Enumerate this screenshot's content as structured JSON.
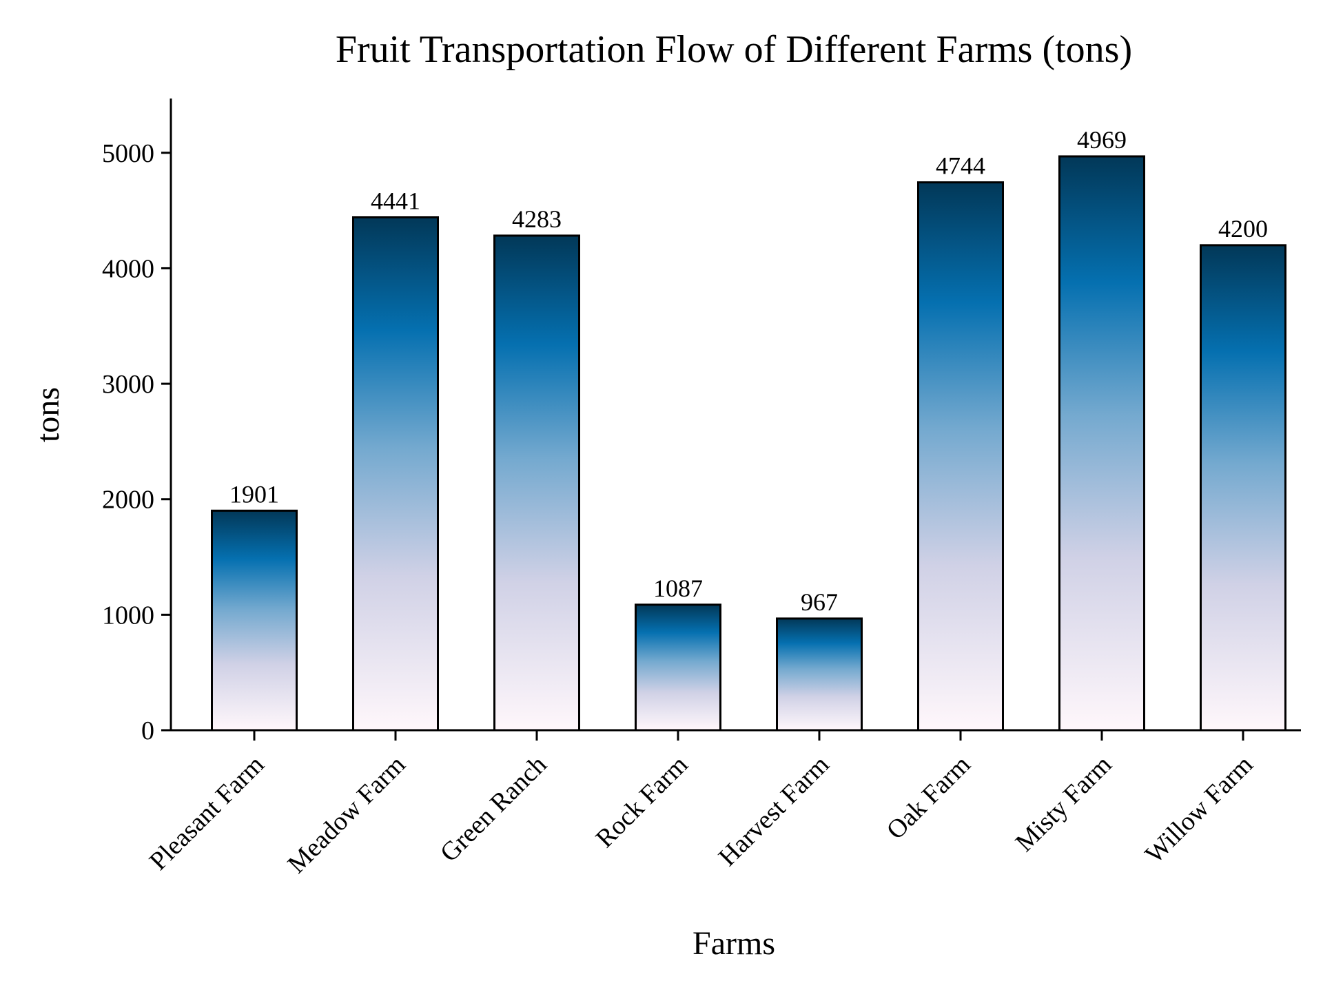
{
  "chart_data": {
    "type": "bar",
    "title": "Fruit Transportation Flow of Different Farms (tons)",
    "xlabel": "Farms",
    "ylabel": "tons",
    "categories": [
      "Pleasant Farm",
      "Meadow Farm",
      "Green Ranch",
      "Rock Farm",
      "Harvest Farm",
      "Oak Farm",
      "Misty Farm",
      "Willow Farm"
    ],
    "values": [
      1901,
      4441,
      4283,
      1087,
      967,
      4744,
      4969,
      4200
    ],
    "ylim": [
      0,
      5470
    ],
    "yticks": [
      0,
      1000,
      2000,
      3000,
      4000,
      5000
    ],
    "grid": false,
    "legend": "none",
    "colors": {
      "gradient_top": "#023858",
      "gradient_mid": "#0570b0",
      "gradient_light": "#74a9cf",
      "gradient_pale": "#d0d1e6",
      "gradient_bottom": "#fff7fb",
      "edge": "#000000"
    }
  }
}
